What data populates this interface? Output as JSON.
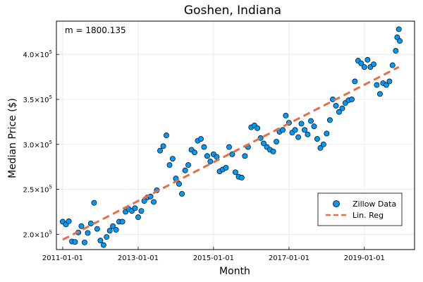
{
  "chart_data": {
    "type": "scatter",
    "title": "Goshen, Indiana",
    "xlabel": "Month",
    "ylabel": "Median Price ($)",
    "annotation": "m = 1800.135",
    "x_start": "2011-01-01",
    "x_tick_labels": [
      "2011-01-01",
      "2013-01-01",
      "2015-01-01",
      "2017-01-01",
      "2019-01-01"
    ],
    "y_tick_labels": [
      {
        "value": 200000,
        "mantissa": "2.0",
        "exp": "5"
      },
      {
        "value": 250000,
        "mantissa": "2.5",
        "exp": "5"
      },
      {
        "value": 300000,
        "mantissa": "3.0",
        "exp": "5"
      },
      {
        "value": 350000,
        "mantissa": "3.5",
        "exp": "5"
      },
      {
        "value": 400000,
        "mantissa": "4.0",
        "exp": "5"
      }
    ],
    "ylim": [
      183000,
      437000
    ],
    "xlim": [
      "2010-11-01",
      "2020-05-01"
    ],
    "grid": true,
    "legend_position": "bottom-right",
    "series": [
      {
        "name": "Zillow Data",
        "kind": "scatter",
        "color": "#009AFA",
        "x": [
          "2011-01-01",
          "2011-02-01",
          "2011-03-01",
          "2011-04-01",
          "2011-05-01",
          "2011-06-01",
          "2011-07-01",
          "2011-08-01",
          "2011-09-01",
          "2011-10-01",
          "2011-11-01",
          "2011-12-01",
          "2012-01-01",
          "2012-02-01",
          "2012-03-01",
          "2012-04-01",
          "2012-05-01",
          "2012-06-01",
          "2012-07-01",
          "2012-08-01",
          "2012-09-01",
          "2012-10-01",
          "2012-11-01",
          "2012-12-01",
          "2013-01-01",
          "2013-02-01",
          "2013-03-01",
          "2013-04-01",
          "2013-05-01",
          "2013-06-01",
          "2013-07-01",
          "2013-08-01",
          "2013-09-01",
          "2013-10-01",
          "2013-11-01",
          "2013-12-01",
          "2014-01-01",
          "2014-02-01",
          "2014-03-01",
          "2014-04-01",
          "2014-05-01",
          "2014-06-01",
          "2014-07-01",
          "2014-08-01",
          "2014-09-01",
          "2014-10-01",
          "2014-11-01",
          "2014-12-01",
          "2015-01-01",
          "2015-02-01",
          "2015-03-01",
          "2015-04-01",
          "2015-05-01",
          "2015-06-01",
          "2015-07-01",
          "2015-08-01",
          "2015-09-01",
          "2015-10-01",
          "2015-11-01",
          "2015-12-01",
          "2016-01-01",
          "2016-02-01",
          "2016-03-01",
          "2016-04-01",
          "2016-05-01",
          "2016-06-01",
          "2016-07-01",
          "2016-08-01",
          "2016-09-01",
          "2016-10-01",
          "2016-11-01",
          "2016-12-01",
          "2017-01-01",
          "2017-02-01",
          "2017-03-01",
          "2017-04-01",
          "2017-05-01",
          "2017-06-01",
          "2017-07-01",
          "2017-08-01",
          "2017-09-01",
          "2017-10-01",
          "2017-11-01",
          "2017-12-01",
          "2018-01-01",
          "2018-02-01",
          "2018-03-01",
          "2018-04-01",
          "2018-05-01",
          "2018-06-01",
          "2018-07-01",
          "2018-08-01",
          "2018-09-01",
          "2018-10-01",
          "2018-11-01",
          "2018-12-01",
          "2019-01-01",
          "2019-02-01",
          "2019-03-01",
          "2019-04-01",
          "2019-05-01",
          "2019-06-01",
          "2019-07-01",
          "2019-08-01",
          "2019-09-01",
          "2019-10-01",
          "2019-11-01",
          "2019-12-01"
        ],
        "y": [
          214000,
          211000,
          214500,
          192000,
          191500,
          202000,
          209000,
          191000,
          201500,
          212000,
          235000,
          206000,
          193000,
          188000,
          197000,
          204000,
          209000,
          205000,
          214000,
          214000,
          225000,
          228000,
          226000,
          229000,
          219000,
          226000,
          237000,
          241000,
          242000,
          236000,
          249000,
          293000,
          298000,
          310000,
          277000,
          284000,
          262000,
          256000,
          245000,
          271000,
          277000,
          294000,
          291000,
          304000,
          306000,
          297000,
          287000,
          281000,
          289000,
          286000,
          270000,
          272000,
          274000,
          297000,
          289000,
          269000,
          264000,
          263000,
          287000,
          297000,
          319000,
          321000,
          318000,
          307000,
          301000,
          297000,
          294000,
          292000,
          303000,
          314000,
          316000,
          332000,
          324000,
          313000,
          316000,
          308000,
          323000,
          316000,
          311000,
          326000,
          320000,
          306000,
          296000,
          300000,
          312000,
          327000,
          350000,
          343000,
          336000,
          340000,
          346000,
          349000,
          350000,
          370000,
          393000,
          390000,
          386000,
          394000,
          386000,
          389000,
          366000,
          356000,
          368000,
          366000,
          370000,
          388000,
          404000,
          428000
        ],
        "note_tail": [
          419000,
          415000
        ]
      },
      {
        "name": "Lin. Reg",
        "kind": "line",
        "color": "#E26F46",
        "slope_per_month": 1800.135,
        "x": [
          "2011-01-01",
          "2019-12-01"
        ],
        "y": [
          194000,
          386000
        ]
      }
    ]
  }
}
